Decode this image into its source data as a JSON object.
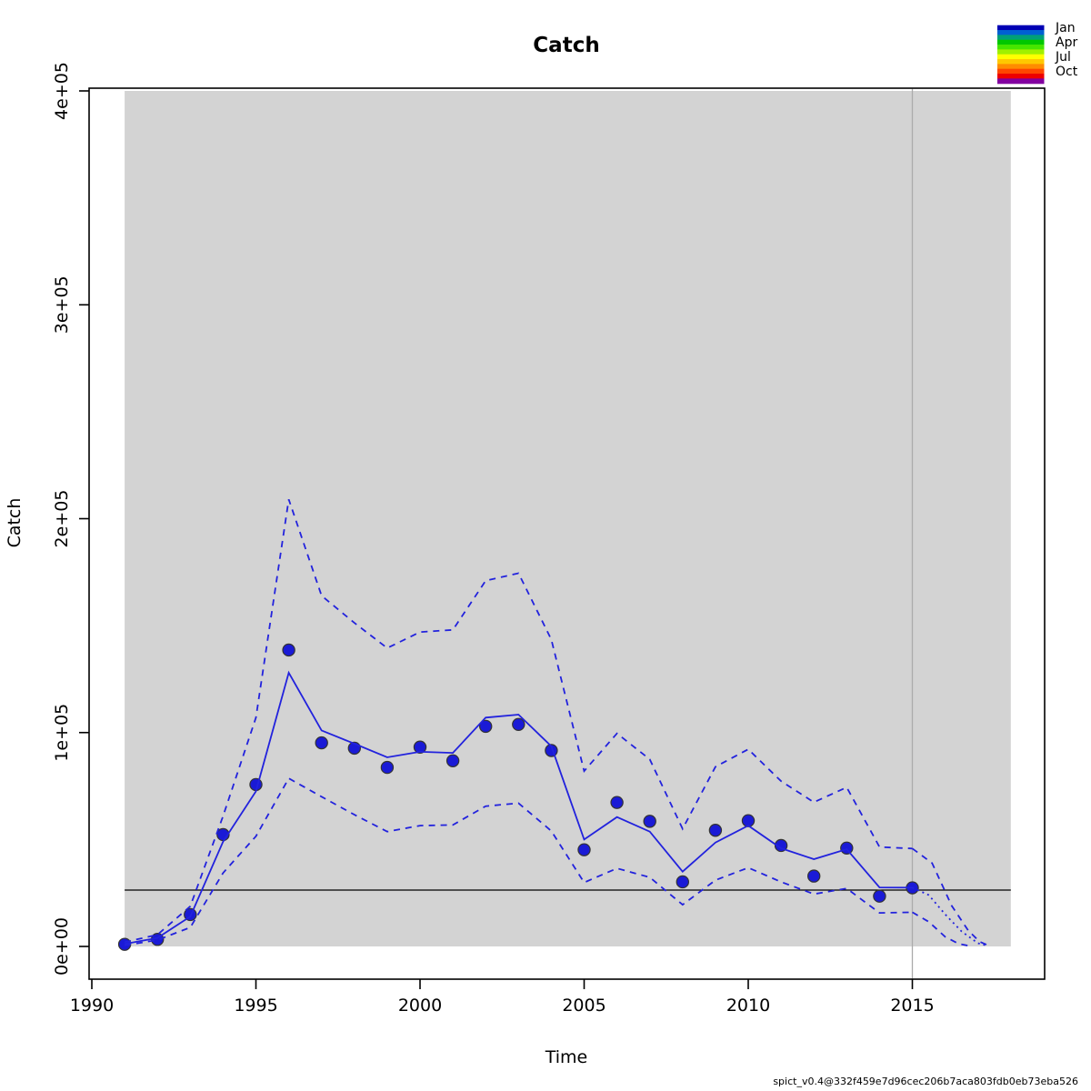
{
  "title": "Catch",
  "xlabel": "Time",
  "ylabel": "Catch",
  "footer": "spict_v0.4@332f459e7d96cec206b7aca803fdb0eb73eba526",
  "legend": {
    "labels": [
      "Jan",
      "Apr",
      "Jul",
      "Oct"
    ],
    "month_colors": [
      "#0000B4",
      "#0060D2",
      "#00A078",
      "#00C800",
      "#46E600",
      "#A0F000",
      "#FFFF00",
      "#FFC800",
      "#FF8C00",
      "#FF4600",
      "#EE0000",
      "#8200A0"
    ]
  },
  "colors": {
    "point_fill": "#1A1AD6",
    "point_edge": "#333333",
    "line_blue": "#2222DD",
    "shade_gray": "#D3D3D3",
    "vline_gray": "#ABABAB",
    "reference_black": "#000000",
    "box_black": "#000000"
  },
  "chart_data": {
    "type": "line",
    "title": "Catch",
    "xlabel": "Time",
    "ylabel": "Catch",
    "xlim": [
      1989.9,
      2019.0
    ],
    "ylim": [
      -15000,
      401000
    ],
    "grid": false,
    "legend_position": "top-right-outside",
    "x_ticks": [
      1990,
      1995,
      2000,
      2005,
      2010,
      2015
    ],
    "y_ticks": {
      "values": [
        0,
        100000,
        200000,
        300000,
        400000
      ],
      "labels": [
        "0e+00",
        "1e+05",
        "2e+05",
        "3e+05",
        "4e+05"
      ]
    },
    "shaded_region": {
      "x": [
        1991,
        2018
      ],
      "y": [
        0,
        400000
      ]
    },
    "reference_line_y": 26350,
    "vertical_line_x": 2015,
    "years": [
      1991,
      1992,
      1993,
      1994,
      1995,
      1996,
      1997,
      1998,
      1999,
      2000,
      2001,
      2002,
      2003,
      2004,
      2005,
      2006,
      2007,
      2008,
      2009,
      2010,
      2011,
      2012,
      2013,
      2014,
      2015
    ],
    "series": [
      {
        "name": "observed-catch-points",
        "style": "points",
        "values": [
          1000,
          3300,
          14900,
          52300,
          75700,
          138600,
          95200,
          92700,
          83700,
          93200,
          86800,
          102900,
          103800,
          91600,
          45200,
          67300,
          58500,
          30200,
          54300,
          58800,
          47200,
          32900,
          46000,
          23500,
          27400
        ]
      },
      {
        "name": "estimated-catch",
        "style": "solid",
        "values": [
          1200,
          4000,
          14000,
          49000,
          72500,
          128000,
          101000,
          94800,
          88400,
          91000,
          90500,
          107000,
          108400,
          93600,
          50000,
          60500,
          53700,
          35000,
          48600,
          56500,
          45900,
          40800,
          45500,
          27600,
          27500
        ]
      },
      {
        "name": "ci-upper",
        "style": "dashed",
        "values": [
          2000,
          5500,
          18800,
          61000,
          107000,
          209000,
          164000,
          151300,
          139500,
          147000,
          148000,
          171000,
          174500,
          143500,
          82000,
          99600,
          87500,
          55000,
          84000,
          92200,
          77300,
          67400,
          74400,
          46500,
          45800
        ]
      },
      {
        "name": "ci-lower",
        "style": "dashed",
        "values": [
          500,
          3000,
          8900,
          34400,
          51500,
          78600,
          70000,
          61600,
          53700,
          56500,
          56800,
          65600,
          67000,
          54000,
          29900,
          36500,
          32300,
          19500,
          31000,
          36800,
          30200,
          24500,
          27100,
          15700,
          16000
        ]
      },
      {
        "name": "prediction-median",
        "style": "dotted",
        "x": [
          2015,
          2015.5,
          2016,
          2016.5,
          2017,
          2017.3
        ],
        "values": [
          27500,
          24000,
          15000,
          7000,
          1500,
          300
        ]
      },
      {
        "name": "prediction-ci-upper",
        "style": "dashed",
        "x": [
          2015,
          2015.6,
          2016.2,
          2016.7,
          2017.05,
          2017.35
        ],
        "values": [
          45800,
          39000,
          19000,
          7500,
          2200,
          300
        ]
      },
      {
        "name": "prediction-ci-lower",
        "style": "dashed",
        "x": [
          2015,
          2015.5,
          2016,
          2016.4,
          2016.75
        ],
        "values": [
          16000,
          11500,
          4500,
          1300,
          200
        ]
      }
    ]
  }
}
